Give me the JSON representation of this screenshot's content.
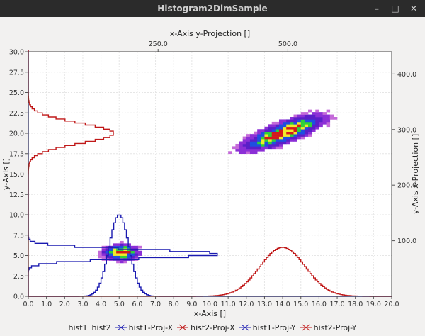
{
  "window": {
    "title": "Histogram2DimSample",
    "minimize": "–",
    "maximize": "□",
    "close": "✕"
  },
  "chart_data": {
    "type": "heatmap",
    "xlabel": "x-Axis []",
    "ylabel": "y-Axis []",
    "top_label": "x-Axis y-Projection []",
    "right_label": "y-Axis x-Projection []",
    "xlim": [
      0,
      20
    ],
    "ylim": [
      0,
      30
    ],
    "x_ticks": [
      "0.0",
      "1.0",
      "2.0",
      "3.0",
      "4.0",
      "5.0",
      "6.0",
      "7.0",
      "8.0",
      "9.0",
      "10.0",
      "11.0",
      "12.0",
      "13.0",
      "14.0",
      "15.0",
      "16.0",
      "17.0",
      "18.0",
      "19.0",
      "20.0"
    ],
    "y_ticks": [
      "0.0",
      "2.5",
      "5.0",
      "7.5",
      "10.0",
      "12.5",
      "15.0",
      "17.5",
      "20.0",
      "22.5",
      "25.0",
      "27.5",
      "30.0"
    ],
    "top_ticks": [
      {
        "label": "250.0",
        "value": 250
      },
      {
        "label": "500.0",
        "value": 500
      }
    ],
    "top_range": [
      0,
      700
    ],
    "right_ticks": [
      {
        "label": "100.0",
        "value": 100
      },
      {
        "label": "200.0",
        "value": 200
      },
      {
        "label": "300.0",
        "value": 300
      },
      {
        "label": "400.0",
        "value": 400
      }
    ],
    "right_range": [
      0,
      440
    ],
    "blobs": [
      {
        "cx": 5.0,
        "cy": 5.25,
        "sx": 0.55,
        "sy": 0.55,
        "corr": 0
      },
      {
        "cx": 14.0,
        "cy": 20.0,
        "sx": 1.25,
        "sy": 1.25,
        "corr": 0.8
      }
    ],
    "hist1_proj_x": {
      "center": 5.0,
      "sigma": 0.55,
      "peak": 10.0
    },
    "hist2_proj_x": {
      "center": 14.0,
      "sigma": 1.25,
      "peak": 6.0
    },
    "hist1_proj_y": {
      "center": 5.2,
      "sigma": 0.55,
      "peak": 10.5
    },
    "hist2_proj_y": {
      "center": 20.0,
      "sigma": 1.25,
      "peak": 4.7
    },
    "legend": [
      {
        "label": "hist1",
        "marker": false
      },
      {
        "label": "hist2",
        "marker": false
      },
      {
        "label": "hist1-Proj-X",
        "marker": true,
        "color": "#1a1ab0"
      },
      {
        "label": "hist2-Proj-X",
        "marker": true,
        "color": "#c01818"
      },
      {
        "label": "hist1-Proj-Y",
        "marker": true,
        "color": "#1a1ab0"
      },
      {
        "label": "hist2-Proj-Y",
        "marker": true,
        "color": "#c01818"
      }
    ]
  }
}
